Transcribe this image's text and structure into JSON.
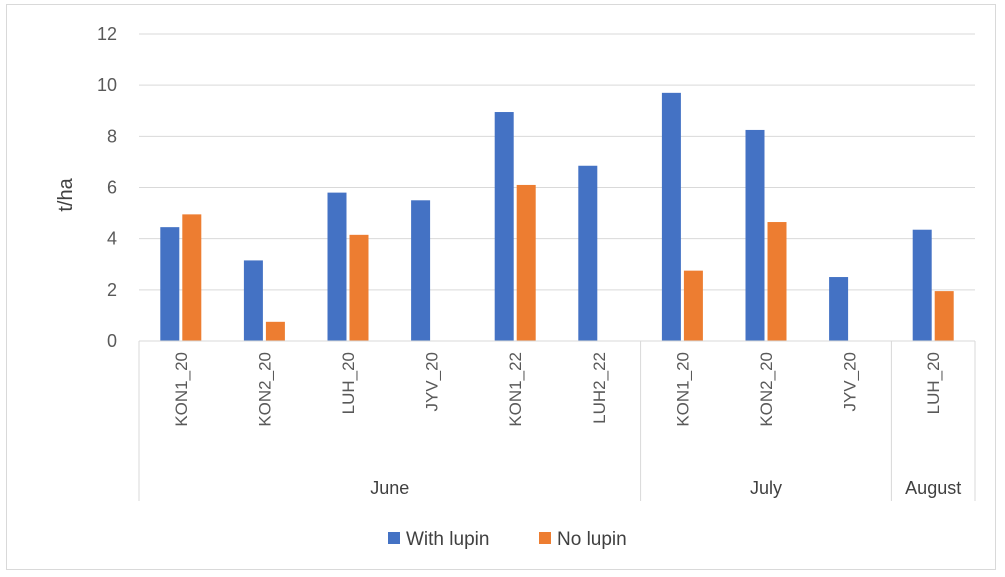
{
  "chart_data": {
    "type": "bar",
    "ylabel": "t/ha",
    "ylim": [
      0,
      12
    ],
    "yticks": [
      0,
      2,
      4,
      6,
      8,
      10,
      12
    ],
    "grid": true,
    "legend": "bottom",
    "categories": [
      "KON1_20",
      "KON2_20",
      "LUH_20",
      "JYV_20",
      "KON1_22",
      "LUH2_22",
      "KON1_20",
      "KON2_20",
      "JYV_20",
      "LUH_20"
    ],
    "groups": [
      {
        "label": "June",
        "count": 6
      },
      {
        "label": "July",
        "count": 3
      },
      {
        "label": "August",
        "count": 1
      }
    ],
    "series": [
      {
        "name": "With lupin",
        "color": "#4472c4",
        "values": [
          4.45,
          3.15,
          5.8,
          5.5,
          8.95,
          6.85,
          9.7,
          8.25,
          2.5,
          4.35
        ]
      },
      {
        "name": "No lupin",
        "color": "#ed7d31",
        "values": [
          4.95,
          0.75,
          4.15,
          null,
          6.1,
          null,
          2.75,
          4.65,
          null,
          1.95
        ]
      }
    ]
  }
}
